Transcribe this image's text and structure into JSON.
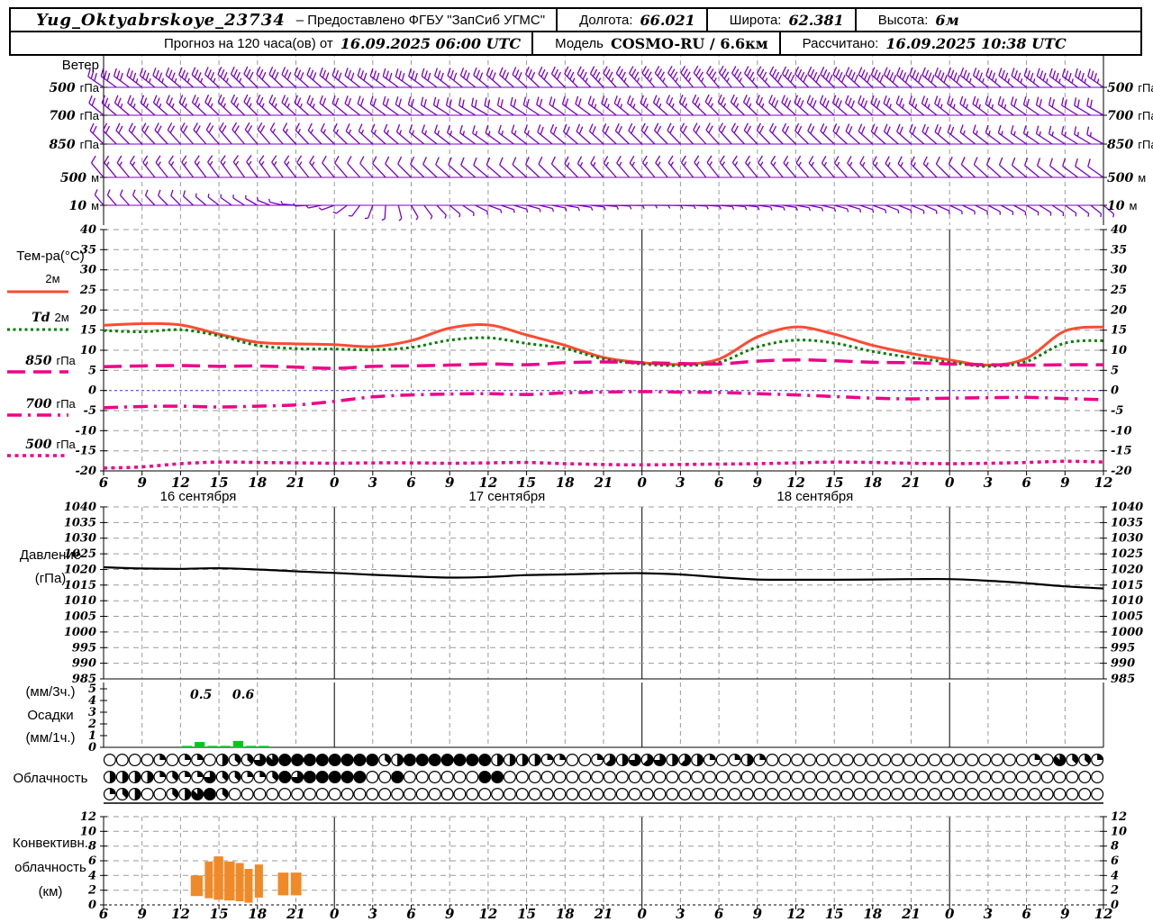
{
  "header": {
    "station": "Yug_Oktyabrskoye_23734",
    "provided": "– Предоставлено ФГБУ \"ЗапСиб УГМС\"",
    "lon_label": "Долгота:",
    "lon": "66.021",
    "lat_label": "Широта:",
    "lat": "62.381",
    "alt_label": "Высота:",
    "alt": "6м",
    "forecast_label": "Прогноз на 120 часа(ов) от",
    "forecast_start": "16.09.2025 06:00 UTC",
    "model_label": "Модель",
    "model": "COSMO-RU / 6.6км",
    "calc_label": "Рассчитано:",
    "calc_time": "16.09.2025 10:38 UTC"
  },
  "colors": {
    "wind": "#7a00c8",
    "t2m": "#fb4b33",
    "td2m": "#007d00",
    "iso": "#ee0088",
    "zero_line": "#3333ee",
    "pressure": "#000000",
    "precip_bar": "#00c818",
    "conv_bar": "#f08a28",
    "grid": "#9a9a9a"
  },
  "side_labels": {
    "wind_title": "Ветер",
    "wind_levels": [
      {
        "num": "500",
        "unit": "гПа"
      },
      {
        "num": "700",
        "unit": "гПа"
      },
      {
        "num": "850",
        "unit": "гПа"
      },
      {
        "num": "500",
        "unit": "м"
      },
      {
        "num": "10",
        "unit": "м"
      }
    ],
    "temp_title": "Тем-ра(°C)",
    "legend": [
      {
        "num": "",
        "unit": "2м"
      },
      {
        "num": "Td",
        "unit": "2м"
      },
      {
        "num": "850",
        "unit": "гПа"
      },
      {
        "num": "700",
        "unit": "гПа"
      },
      {
        "num": "500",
        "unit": "гПа"
      }
    ],
    "pressure_title": [
      "Давление",
      "(гПа)"
    ],
    "precip_title": [
      "(мм/3ч.)",
      "Осадки",
      "(мм/1ч.)"
    ],
    "cloud_title": "Облачность",
    "conv_title": [
      "Конвективн.",
      "облачность",
      "(км)"
    ]
  },
  "time_axis": {
    "hours_span": 78,
    "ticks": [
      "6",
      "9",
      "12",
      "15",
      "18",
      "21",
      "0",
      "3",
      "6",
      "9",
      "12",
      "15",
      "18",
      "21",
      "0",
      "3",
      "6",
      "9",
      "12",
      "15",
      "18",
      "21",
      "0",
      "3",
      "6",
      "9",
      "12"
    ],
    "dates": [
      {
        "label": "16 сентября",
        "x_index": 2.46
      },
      {
        "label": "17 сентября",
        "x_index": 10.49
      },
      {
        "label": "18 сентября",
        "x_index": 18.5
      }
    ]
  },
  "chart_data": [
    {
      "name": "wind",
      "type": "wind-barbs",
      "unit": "knots",
      "rows": [
        {
          "level": "500 гПа",
          "keyframes": [
            [
              0,
              305,
              30
            ],
            [
              6,
              310,
              35
            ],
            [
              12,
              315,
              32
            ],
            [
              18,
              310,
              30
            ],
            [
              24,
              305,
              28
            ],
            [
              30,
              310,
              30
            ],
            [
              36,
              315,
              32
            ],
            [
              42,
              318,
              35
            ],
            [
              48,
              320,
              35
            ],
            [
              54,
              315,
              38
            ],
            [
              60,
              312,
              40
            ],
            [
              66,
              310,
              38
            ],
            [
              72,
              308,
              35
            ],
            [
              78,
              305,
              35
            ]
          ]
        },
        {
          "level": "700 гПа",
          "keyframes": [
            [
              0,
              310,
              22
            ],
            [
              6,
              312,
              25
            ],
            [
              12,
              315,
              25
            ],
            [
              18,
              310,
              22
            ],
            [
              24,
              305,
              20
            ],
            [
              30,
              300,
              18
            ],
            [
              36,
              305,
              20
            ],
            [
              42,
              310,
              25
            ],
            [
              48,
              315,
              25
            ],
            [
              54,
              312,
              28
            ],
            [
              60,
              310,
              28
            ],
            [
              66,
              308,
              25
            ],
            [
              72,
              305,
              22
            ],
            [
              78,
              300,
              20
            ]
          ]
        },
        {
          "level": "850 гПа",
          "keyframes": [
            [
              0,
              315,
              18
            ],
            [
              6,
              318,
              20
            ],
            [
              12,
              320,
              18
            ],
            [
              18,
              315,
              15
            ],
            [
              24,
              310,
              15
            ],
            [
              30,
              305,
              15
            ],
            [
              36,
              310,
              18
            ],
            [
              42,
              315,
              20
            ],
            [
              48,
              318,
              20
            ],
            [
              54,
              315,
              22
            ],
            [
              60,
              312,
              20
            ],
            [
              66,
              310,
              18
            ],
            [
              72,
              305,
              15
            ],
            [
              78,
              300,
              15
            ]
          ]
        },
        {
          "level": "500 м",
          "keyframes": [
            [
              0,
              320,
              12
            ],
            [
              6,
              322,
              15
            ],
            [
              12,
              325,
              15
            ],
            [
              18,
              320,
              12
            ],
            [
              24,
              315,
              10
            ],
            [
              30,
              310,
              10
            ],
            [
              36,
              315,
              12
            ],
            [
              42,
              320,
              15
            ],
            [
              48,
              322,
              15
            ],
            [
              54,
              320,
              15
            ],
            [
              60,
              318,
              15
            ],
            [
              66,
              315,
              12
            ],
            [
              72,
              310,
              10
            ],
            [
              78,
              305,
              10
            ]
          ]
        },
        {
          "level": "10 м",
          "keyframes": [
            [
              0,
              320,
              8
            ],
            [
              6,
              315,
              8
            ],
            [
              12,
              300,
              6
            ],
            [
              18,
              250,
              5
            ],
            [
              24,
              150,
              5
            ],
            [
              30,
              110,
              5
            ],
            [
              36,
              100,
              5
            ],
            [
              42,
              90,
              5
            ],
            [
              48,
              95,
              5
            ],
            [
              54,
              100,
              6
            ],
            [
              60,
              110,
              6
            ],
            [
              66,
              115,
              5
            ],
            [
              72,
              120,
              5
            ],
            [
              78,
              130,
              5
            ]
          ]
        }
      ]
    },
    {
      "name": "temperature",
      "type": "line",
      "ylabel": "Тем-ра(°C)",
      "ylim": [
        -20,
        40
      ],
      "y_ticks": [
        40,
        35,
        30,
        25,
        20,
        15,
        10,
        5,
        0,
        -5,
        -10,
        -15,
        -20
      ],
      "step_hours": 3,
      "series": [
        {
          "name": "2м",
          "color": "#fb4b33",
          "width": 3,
          "dash": "",
          "values": [
            16.2,
            16.6,
            16.3,
            14.0,
            12.0,
            11.6,
            11.4,
            10.9,
            12.4,
            15.5,
            16.3,
            13.8,
            11.2,
            8.2,
            6.9,
            6.5,
            7.8,
            13.3,
            15.8,
            14.0,
            11.2,
            9.2,
            7.6,
            6.3,
            8.0,
            14.8,
            15.8
          ]
        },
        {
          "name": "Td 2м",
          "color": "#007d00",
          "width": 3,
          "dash": "3 3.5",
          "values": [
            14.9,
            14.6,
            15.1,
            13.6,
            11.2,
            10.4,
            10.3,
            10.1,
            10.7,
            12.5,
            13.1,
            11.7,
            10.4,
            7.8,
            6.6,
            6.2,
            7.0,
            10.8,
            12.5,
            11.8,
            9.7,
            8.2,
            7.0,
            6.0,
            7.2,
            11.8,
            12.4
          ]
        },
        {
          "name": "850 гПа",
          "color": "#ee0088",
          "width": 3.5,
          "dash": "20 9",
          "values": [
            5.9,
            6.1,
            6.2,
            6.0,
            6.1,
            5.8,
            5.5,
            6.0,
            6.1,
            6.3,
            6.6,
            6.4,
            6.9,
            7.1,
            6.9,
            6.7,
            6.6,
            7.3,
            7.6,
            7.4,
            7.0,
            6.9,
            6.6,
            6.4,
            6.3,
            6.4,
            6.4
          ]
        },
        {
          "name": "700 гПа",
          "color": "#ee0088",
          "width": 3.5,
          "dash": "16 7 3 7",
          "values": [
            -4.3,
            -4.0,
            -3.9,
            -4.1,
            -3.9,
            -3.6,
            -2.7,
            -1.6,
            -1.1,
            -0.9,
            -0.8,
            -1.0,
            -0.6,
            -0.4,
            -0.3,
            -0.4,
            -0.5,
            -0.8,
            -1.1,
            -1.5,
            -1.9,
            -2.1,
            -1.9,
            -1.8,
            -1.7,
            -2.0,
            -2.3
          ]
        },
        {
          "name": "500 гПа",
          "color": "#ee0088",
          "width": 3.5,
          "dash": "4 4.5",
          "values": [
            -19.3,
            -19.0,
            -18.2,
            -17.8,
            -17.9,
            -18.0,
            -18.1,
            -18.0,
            -18.0,
            -18.1,
            -18.0,
            -17.9,
            -18.2,
            -18.4,
            -18.5,
            -18.4,
            -18.3,
            -18.2,
            -18.0,
            -17.8,
            -17.9,
            -18.1,
            -18.2,
            -18.1,
            -17.9,
            -17.6,
            -17.8
          ]
        }
      ]
    },
    {
      "name": "pressure",
      "type": "line",
      "ylabel": "Давление (гПа)",
      "ylim": [
        985,
        1040
      ],
      "y_ticks": [
        1040,
        1035,
        1030,
        1025,
        1020,
        1015,
        1010,
        1005,
        1000,
        995,
        990,
        985
      ],
      "step_hours": 3,
      "values": [
        1020.7,
        1020.3,
        1020.2,
        1020.4,
        1020.0,
        1019.4,
        1018.9,
        1018.3,
        1017.8,
        1017.4,
        1017.6,
        1018.2,
        1018.4,
        1018.7,
        1018.8,
        1018.4,
        1017.5,
        1016.8,
        1016.7,
        1016.7,
        1016.8,
        1016.9,
        1016.9,
        1016.4,
        1015.6,
        1014.6,
        1013.9
      ]
    },
    {
      "name": "precipitation",
      "type": "bar",
      "ylabel": "Осадки (мм/1ч.)",
      "ylim": [
        0,
        5
      ],
      "y_ticks": [
        0,
        1,
        2,
        3,
        4,
        5
      ],
      "bars_hourly": [
        [
          6,
          0.12
        ],
        [
          7,
          0.45
        ],
        [
          8,
          0.12
        ],
        [
          9,
          0.12
        ],
        [
          10,
          0.55
        ],
        [
          11,
          0.12
        ],
        [
          12,
          0.12
        ]
      ],
      "labels_3h": [
        {
          "text": "0.5",
          "hour": 7.6
        },
        {
          "text": "0.6",
          "hour": 10.9
        }
      ]
    },
    {
      "name": "cloudiness",
      "type": "heatmap",
      "ylabel": "Облачность",
      "note": "fill in eighths per hourly circle, 3 rows (high/mid/low)",
      "rows": [
        [
          0,
          0,
          0,
          0,
          2,
          0,
          2,
          2,
          0,
          4,
          3,
          3,
          6,
          7,
          8,
          8,
          8,
          8,
          8,
          8,
          8,
          8,
          3,
          4,
          8,
          8,
          8,
          8,
          8,
          8,
          8,
          4,
          4,
          4,
          4,
          2,
          2,
          0,
          0,
          2,
          5,
          4,
          6,
          5,
          6,
          4,
          5,
          4,
          2,
          0,
          2,
          4,
          2,
          0,
          0,
          0,
          0,
          0,
          0,
          0,
          0,
          0,
          0,
          0,
          0,
          0,
          0,
          0,
          0,
          0,
          0,
          0,
          0,
          0,
          2,
          0,
          7,
          3,
          3,
          2
        ],
        [
          4,
          4,
          4,
          4,
          2,
          3,
          2,
          2,
          6,
          3,
          3,
          2,
          2,
          3,
          8,
          6,
          8,
          8,
          8,
          8,
          8,
          0,
          0,
          8,
          0,
          0,
          0,
          0,
          0,
          0,
          8,
          8,
          0,
          0,
          0,
          0,
          0,
          0,
          0,
          0,
          0,
          0,
          0,
          0,
          0,
          0,
          0,
          0,
          0,
          0,
          0,
          0,
          0,
          0,
          0,
          0,
          0,
          0,
          0,
          0,
          0,
          0,
          0,
          0,
          0,
          0,
          0,
          0,
          0,
          0,
          0,
          0,
          0,
          0,
          0,
          0,
          0,
          0,
          0,
          0
        ],
        [
          2,
          3,
          4,
          0,
          0,
          3,
          4,
          7,
          8,
          3,
          0,
          0,
          0,
          0,
          0,
          0,
          0,
          0,
          0,
          0,
          0,
          0,
          0,
          0,
          0,
          0,
          0,
          0,
          0,
          0,
          0,
          0,
          0,
          0,
          0,
          0,
          0,
          0,
          0,
          0,
          0,
          0,
          0,
          0,
          0,
          0,
          0,
          0,
          0,
          0,
          0,
          0,
          0,
          0,
          0,
          0,
          0,
          0,
          0,
          0,
          0,
          0,
          0,
          0,
          0,
          0,
          0,
          0,
          0,
          0,
          0,
          0,
          0,
          0,
          0,
          0,
          0,
          0,
          0,
          0
        ]
      ]
    },
    {
      "name": "convective_cloud",
      "type": "bar",
      "ylabel": "Конвективн. облачность (км)",
      "ylim": [
        0,
        12
      ],
      "y_ticks": [
        0,
        2,
        4,
        6,
        8,
        10,
        12
      ],
      "bars": [
        {
          "h0": 6.8,
          "h1": 7.8,
          "bottom_km": 1.2,
          "top_km": 4.0
        },
        {
          "h0": 7.9,
          "h1": 8.6,
          "bottom_km": 0.9,
          "top_km": 5.9
        },
        {
          "h0": 8.6,
          "h1": 9.4,
          "bottom_km": 0.7,
          "top_km": 6.6
        },
        {
          "h0": 9.4,
          "h1": 10.3,
          "bottom_km": 0.6,
          "top_km": 5.9
        },
        {
          "h0": 10.3,
          "h1": 11.0,
          "bottom_km": 0.5,
          "top_km": 5.7
        },
        {
          "h0": 11.0,
          "h1": 11.7,
          "bottom_km": 0.3,
          "top_km": 4.9
        },
        {
          "h0": 11.8,
          "h1": 12.5,
          "bottom_km": 1.0,
          "top_km": 5.5
        },
        {
          "h0": 13.6,
          "h1": 14.5,
          "bottom_km": 1.3,
          "top_km": 4.4
        },
        {
          "h0": 14.6,
          "h1": 15.5,
          "bottom_km": 1.3,
          "top_km": 4.4
        }
      ]
    }
  ]
}
